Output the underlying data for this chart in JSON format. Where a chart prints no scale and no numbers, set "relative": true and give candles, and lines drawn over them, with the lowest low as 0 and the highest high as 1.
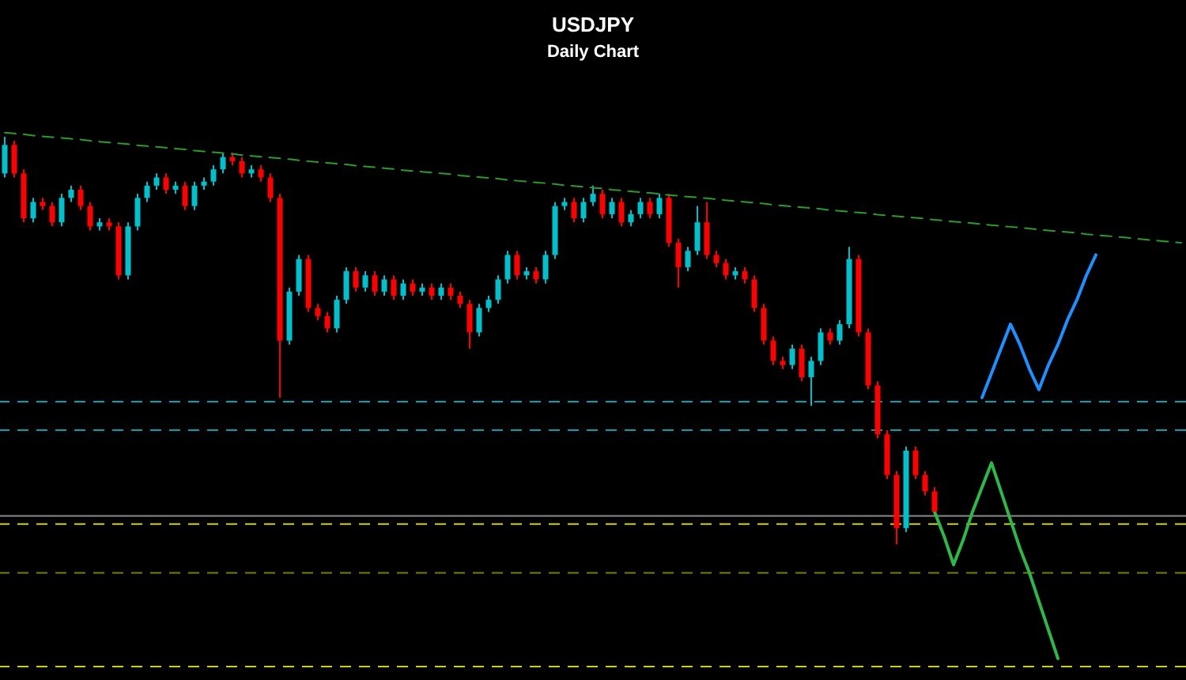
{
  "chart_data": {
    "type": "candlestick",
    "title": "USDJPY",
    "subtitle": "Daily Chart",
    "relative": true,
    "tick_labels": false,
    "categories": [
      null,
      null,
      null,
      null,
      null,
      null,
      null,
      null,
      null,
      null,
      null,
      null,
      null,
      null,
      null,
      null,
      null,
      null,
      null,
      null,
      null,
      null,
      null,
      null,
      null,
      null,
      null,
      null,
      null,
      null,
      null,
      null,
      null,
      null,
      null,
      null,
      null,
      null,
      null,
      null,
      null,
      null,
      null,
      null,
      null,
      null,
      null,
      null,
      null,
      null,
      null,
      null,
      null,
      null,
      null,
      null,
      null,
      null,
      null,
      null,
      null,
      null,
      null,
      null,
      null,
      null,
      null,
      null,
      null,
      null,
      null,
      null,
      null,
      null,
      null,
      null,
      null,
      null,
      null,
      null,
      null,
      null,
      null,
      null,
      null,
      null,
      null,
      null,
      null,
      null,
      null,
      null,
      null,
      null,
      null,
      null,
      null,
      null,
      null,
      null,
      null,
      null,
      null,
      null,
      null,
      null,
      null,
      null,
      null,
      null,
      null,
      null,
      null,
      null,
      null,
      null,
      null,
      null,
      null,
      null,
      null,
      null,
      null,
      null,
      null
    ],
    "ohlc": [
      [
        0.91,
        1.0,
        0.9,
        0.98
      ],
      [
        0.98,
        0.99,
        0.9,
        0.91
      ],
      [
        0.91,
        0.92,
        0.79,
        0.8
      ],
      [
        0.8,
        0.85,
        0.79,
        0.84
      ],
      [
        0.84,
        0.85,
        0.82,
        0.83
      ],
      [
        0.83,
        0.84,
        0.78,
        0.79
      ],
      [
        0.79,
        0.86,
        0.78,
        0.85
      ],
      [
        0.85,
        0.88,
        0.84,
        0.87
      ],
      [
        0.87,
        0.88,
        0.82,
        0.83
      ],
      [
        0.83,
        0.84,
        0.77,
        0.78
      ],
      [
        0.78,
        0.8,
        0.77,
        0.79
      ],
      [
        0.79,
        0.8,
        0.77,
        0.78
      ],
      [
        0.78,
        0.79,
        0.65,
        0.66
      ],
      [
        0.66,
        0.79,
        0.65,
        0.78
      ],
      [
        0.78,
        0.86,
        0.77,
        0.85
      ],
      [
        0.85,
        0.89,
        0.84,
        0.88
      ],
      [
        0.88,
        0.91,
        0.87,
        0.9
      ],
      [
        0.9,
        0.91,
        0.86,
        0.87
      ],
      [
        0.87,
        0.89,
        0.86,
        0.88
      ],
      [
        0.88,
        0.89,
        0.82,
        0.83
      ],
      [
        0.83,
        0.89,
        0.82,
        0.88
      ],
      [
        0.88,
        0.9,
        0.87,
        0.89
      ],
      [
        0.89,
        0.93,
        0.88,
        0.92
      ],
      [
        0.92,
        0.96,
        0.91,
        0.95
      ],
      [
        0.95,
        0.96,
        0.93,
        0.94
      ],
      [
        0.94,
        0.95,
        0.9,
        0.91
      ],
      [
        0.91,
        0.93,
        0.9,
        0.92
      ],
      [
        0.92,
        0.93,
        0.89,
        0.9
      ],
      [
        0.9,
        0.91,
        0.84,
        0.85
      ],
      [
        0.85,
        0.86,
        0.36,
        0.5
      ],
      [
        0.5,
        0.63,
        0.49,
        0.62
      ],
      [
        0.62,
        0.71,
        0.61,
        0.7
      ],
      [
        0.7,
        0.71,
        0.57,
        0.58
      ],
      [
        0.58,
        0.59,
        0.55,
        0.56
      ],
      [
        0.56,
        0.57,
        0.52,
        0.53
      ],
      [
        0.53,
        0.61,
        0.52,
        0.6
      ],
      [
        0.6,
        0.68,
        0.59,
        0.67
      ],
      [
        0.67,
        0.68,
        0.62,
        0.63
      ],
      [
        0.63,
        0.67,
        0.62,
        0.66
      ],
      [
        0.66,
        0.67,
        0.61,
        0.62
      ],
      [
        0.62,
        0.66,
        0.61,
        0.65
      ],
      [
        0.65,
        0.66,
        0.6,
        0.61
      ],
      [
        0.61,
        0.65,
        0.6,
        0.64
      ],
      [
        0.64,
        0.65,
        0.61,
        0.62
      ],
      [
        0.62,
        0.64,
        0.61,
        0.63
      ],
      [
        0.63,
        0.64,
        0.6,
        0.61
      ],
      [
        0.61,
        0.64,
        0.6,
        0.63
      ],
      [
        0.63,
        0.64,
        0.6,
        0.61
      ],
      [
        0.61,
        0.62,
        0.58,
        0.59
      ],
      [
        0.59,
        0.6,
        0.48,
        0.52
      ],
      [
        0.52,
        0.59,
        0.51,
        0.58
      ],
      [
        0.58,
        0.61,
        0.57,
        0.6
      ],
      [
        0.6,
        0.66,
        0.59,
        0.65
      ],
      [
        0.65,
        0.72,
        0.64,
        0.71
      ],
      [
        0.71,
        0.72,
        0.65,
        0.66
      ],
      [
        0.66,
        0.68,
        0.65,
        0.67
      ],
      [
        0.67,
        0.68,
        0.64,
        0.65
      ],
      [
        0.65,
        0.72,
        0.64,
        0.71
      ],
      [
        0.71,
        0.84,
        0.7,
        0.83
      ],
      [
        0.83,
        0.85,
        0.82,
        0.84
      ],
      [
        0.84,
        0.85,
        0.79,
        0.8
      ],
      [
        0.8,
        0.85,
        0.79,
        0.84
      ],
      [
        0.84,
        0.88,
        0.83,
        0.86
      ],
      [
        0.86,
        0.87,
        0.8,
        0.81
      ],
      [
        0.81,
        0.85,
        0.8,
        0.84
      ],
      [
        0.84,
        0.85,
        0.78,
        0.79
      ],
      [
        0.79,
        0.82,
        0.78,
        0.81
      ],
      [
        0.81,
        0.85,
        0.8,
        0.84
      ],
      [
        0.84,
        0.85,
        0.8,
        0.81
      ],
      [
        0.81,
        0.86,
        0.8,
        0.85
      ],
      [
        0.85,
        0.86,
        0.73,
        0.74
      ],
      [
        0.74,
        0.75,
        0.63,
        0.68
      ],
      [
        0.68,
        0.73,
        0.67,
        0.72
      ],
      [
        0.72,
        0.83,
        0.71,
        0.79
      ],
      [
        0.79,
        0.84,
        0.7,
        0.71
      ],
      [
        0.71,
        0.72,
        0.68,
        0.69
      ],
      [
        0.69,
        0.7,
        0.65,
        0.66
      ],
      [
        0.66,
        0.68,
        0.65,
        0.67
      ],
      [
        0.67,
        0.68,
        0.64,
        0.65
      ],
      [
        0.65,
        0.66,
        0.57,
        0.58
      ],
      [
        0.58,
        0.59,
        0.49,
        0.5
      ],
      [
        0.5,
        0.51,
        0.44,
        0.45
      ],
      [
        0.45,
        0.46,
        0.43,
        0.44
      ],
      [
        0.44,
        0.49,
        0.43,
        0.48
      ],
      [
        0.48,
        0.49,
        0.4,
        0.41
      ],
      [
        0.41,
        0.46,
        0.34,
        0.45
      ],
      [
        0.45,
        0.53,
        0.44,
        0.52
      ],
      [
        0.52,
        0.53,
        0.49,
        0.5
      ],
      [
        0.5,
        0.55,
        0.49,
        0.54
      ],
      [
        0.54,
        0.73,
        0.53,
        0.7
      ],
      [
        0.7,
        0.71,
        0.51,
        0.52
      ],
      [
        0.52,
        0.53,
        0.38,
        0.39
      ],
      [
        0.39,
        0.4,
        0.26,
        0.27
      ],
      [
        0.27,
        0.28,
        0.16,
        0.17
      ],
      [
        0.17,
        0.18,
        0.0,
        0.04
      ],
      [
        0.04,
        0.24,
        0.03,
        0.23
      ],
      [
        0.23,
        0.24,
        0.16,
        0.17
      ],
      [
        0.17,
        0.18,
        0.12,
        0.13
      ],
      [
        0.13,
        0.14,
        0.07,
        0.08
      ],
      null,
      null,
      null,
      null,
      null,
      null,
      null,
      null,
      null,
      null,
      null,
      null,
      null,
      null,
      null,
      null,
      null,
      null,
      null,
      null,
      null,
      null,
      null,
      null,
      null,
      null
    ],
    "colors": [
      "#00c0cc",
      "#ff0000",
      "#ff0000",
      "#00c0cc",
      "#ff0000",
      "#ff0000",
      "#00c0cc",
      "#00c0cc",
      "#ff0000",
      "#ff0000",
      "#00c0cc",
      "#ff0000",
      "#ff0000",
      "#00c0cc",
      "#00c0cc",
      "#00c0cc",
      "#00c0cc",
      "#ff0000",
      "#00c0cc",
      "#ff0000",
      "#00c0cc",
      "#00c0cc",
      "#00c0cc",
      "#00c0cc",
      "#ff0000",
      "#ff0000",
      "#00c0cc",
      "#ff0000",
      "#ff0000",
      "#ff0000",
      "#00c0cc",
      "#00c0cc",
      "#ff0000",
      "#ff0000",
      "#ff0000",
      "#00c0cc",
      "#00c0cc",
      "#ff0000",
      "#00c0cc",
      "#ff0000",
      "#00c0cc",
      "#ff0000",
      "#00c0cc",
      "#ff0000",
      "#00c0cc",
      "#ff0000",
      "#00c0cc",
      "#ff0000",
      "#ff0000",
      "#ff0000",
      "#00c0cc",
      "#00c0cc",
      "#00c0cc",
      "#00c0cc",
      "#ff0000",
      "#00c0cc",
      "#ff0000",
      "#00c0cc",
      "#00c0cc",
      "#00c0cc",
      "#ff0000",
      "#00c0cc",
      "#00c0cc",
      "#ff0000",
      "#00c0cc",
      "#ff0000",
      "#00c0cc",
      "#00c0cc",
      "#ff0000",
      "#00c0cc",
      "#ff0000",
      "#ff0000",
      "#00c0cc",
      "#00c0cc",
      "#ff0000",
      "#ff0000",
      "#ff0000",
      "#00c0cc",
      "#ff0000",
      "#ff0000",
      "#ff0000",
      "#ff0000",
      "#ff0000",
      "#00c0cc",
      "#ff0000",
      "#00c0cc",
      "#00c0cc",
      "#ff0000",
      "#00c0cc",
      "#00c0cc",
      "#ff0000",
      "#ff0000",
      "#ff0000",
      "#ff0000",
      "#ff0000",
      "#00c0cc",
      "#ff0000",
      "#ff0000",
      "#ff0000",
      null,
      null,
      null,
      null,
      null,
      null,
      null,
      null,
      null,
      null,
      null,
      null,
      null,
      null,
      null,
      null,
      null,
      null,
      null,
      null,
      null,
      null,
      null,
      null,
      null,
      null
    ],
    "series": [
      {
        "type": "line",
        "line_style": "dashed",
        "color": "#2a9d2a",
        "values": [
          1.01,
          1.008,
          1.006,
          1.003,
          1.001,
          0.999,
          0.997,
          0.995,
          0.993,
          0.99,
          0.988,
          0.986,
          0.984,
          0.982,
          0.979,
          0.977,
          0.975,
          0.973,
          0.971,
          0.969,
          0.966,
          0.964,
          0.962,
          0.96,
          0.958,
          0.955,
          0.953,
          0.951,
          0.949,
          0.947,
          0.945,
          0.942,
          0.94,
          0.938,
          0.936,
          0.934,
          0.932,
          0.929,
          0.927,
          0.925,
          0.923,
          0.921,
          0.918,
          0.916,
          0.914,
          0.912,
          0.91,
          0.908,
          0.905,
          0.903,
          0.901,
          0.899,
          0.897,
          0.894,
          0.892,
          0.89,
          0.888,
          0.886,
          0.884,
          0.881,
          0.879,
          0.877,
          0.875,
          0.873,
          0.87,
          0.868,
          0.866,
          0.864,
          0.862,
          0.86,
          0.857,
          0.855,
          0.853,
          0.851,
          0.849,
          0.847,
          0.844,
          0.842,
          0.84,
          0.838,
          0.836,
          0.833,
          0.831,
          0.829,
          0.827,
          0.825,
          0.823,
          0.82,
          0.818,
          0.816,
          0.814,
          0.812,
          0.809,
          0.807,
          0.805,
          0.803,
          0.801,
          0.799,
          0.796,
          0.794,
          0.792,
          0.79,
          0.788,
          0.785,
          0.783,
          0.781,
          0.779,
          0.777,
          0.775,
          0.772,
          0.77,
          0.768,
          0.766,
          0.764,
          0.761,
          0.759,
          0.757,
          0.755,
          0.753,
          0.751,
          0.748,
          0.746,
          0.744,
          0.742,
          0.74
        ]
      },
      {
        "type": "line",
        "line_style": "solid",
        "color": "#1e90ff",
        "values": [
          null,
          null,
          null,
          null,
          null,
          null,
          null,
          null,
          null,
          null,
          null,
          null,
          null,
          null,
          null,
          null,
          null,
          null,
          null,
          null,
          null,
          null,
          null,
          null,
          null,
          null,
          null,
          null,
          null,
          null,
          null,
          null,
          null,
          null,
          null,
          null,
          null,
          null,
          null,
          null,
          null,
          null,
          null,
          null,
          null,
          null,
          null,
          null,
          null,
          null,
          null,
          null,
          null,
          null,
          null,
          null,
          null,
          null,
          null,
          null,
          null,
          null,
          null,
          null,
          null,
          null,
          null,
          null,
          null,
          null,
          null,
          null,
          null,
          null,
          null,
          null,
          null,
          null,
          null,
          null,
          null,
          null,
          null,
          null,
          null,
          null,
          null,
          null,
          null,
          null,
          null,
          null,
          null,
          null,
          null,
          null,
          null,
          null,
          null,
          null,
          null,
          null,
          null,
          0.36,
          0.42,
          0.48,
          0.54,
          0.49,
          0.43,
          0.38,
          0.44,
          0.49,
          0.55,
          0.6,
          0.66,
          0.71,
          null,
          null,
          null,
          null,
          null,
          null,
          null,
          null,
          null
        ]
      },
      {
        "type": "line",
        "line_style": "solid",
        "color": "#2eb84a",
        "values": [
          null,
          null,
          null,
          null,
          null,
          null,
          null,
          null,
          null,
          null,
          null,
          null,
          null,
          null,
          null,
          null,
          null,
          null,
          null,
          null,
          null,
          null,
          null,
          null,
          null,
          null,
          null,
          null,
          null,
          null,
          null,
          null,
          null,
          null,
          null,
          null,
          null,
          null,
          null,
          null,
          null,
          null,
          null,
          null,
          null,
          null,
          null,
          null,
          null,
          null,
          null,
          null,
          null,
          null,
          null,
          null,
          null,
          null,
          null,
          null,
          null,
          null,
          null,
          null,
          null,
          null,
          null,
          null,
          null,
          null,
          null,
          null,
          null,
          null,
          null,
          null,
          null,
          null,
          null,
          null,
          null,
          null,
          null,
          null,
          null,
          null,
          null,
          null,
          null,
          null,
          null,
          null,
          null,
          null,
          null,
          null,
          null,
          null,
          0.08,
          0.02,
          -0.05,
          0.01,
          0.08,
          0.14,
          0.2,
          0.13,
          0.06,
          -0.01,
          -0.07,
          -0.14,
          -0.21,
          -0.28,
          null,
          null,
          null,
          null,
          null,
          null,
          null,
          null,
          null,
          null,
          null,
          null,
          null
        ]
      }
    ],
    "ref_lines": [
      {
        "axis": "y",
        "value": 0.35,
        "color": "#00a5b4",
        "line_style": "dashed"
      },
      {
        "axis": "y",
        "value": 0.28,
        "color": "#00a5b4",
        "line_style": "dashed"
      },
      {
        "axis": "y",
        "value": 0.07,
        "color": "#8c8c8c",
        "line_style": "solid"
      },
      {
        "axis": "y",
        "value": 0.05,
        "color": "#d2d200",
        "line_style": "dashed"
      },
      {
        "axis": "y",
        "value": -0.07,
        "color": "#7d7d00",
        "line_style": "dashed"
      },
      {
        "axis": "y",
        "value": -0.3,
        "color": "#d2d200",
        "line_style": "dashed"
      }
    ]
  }
}
